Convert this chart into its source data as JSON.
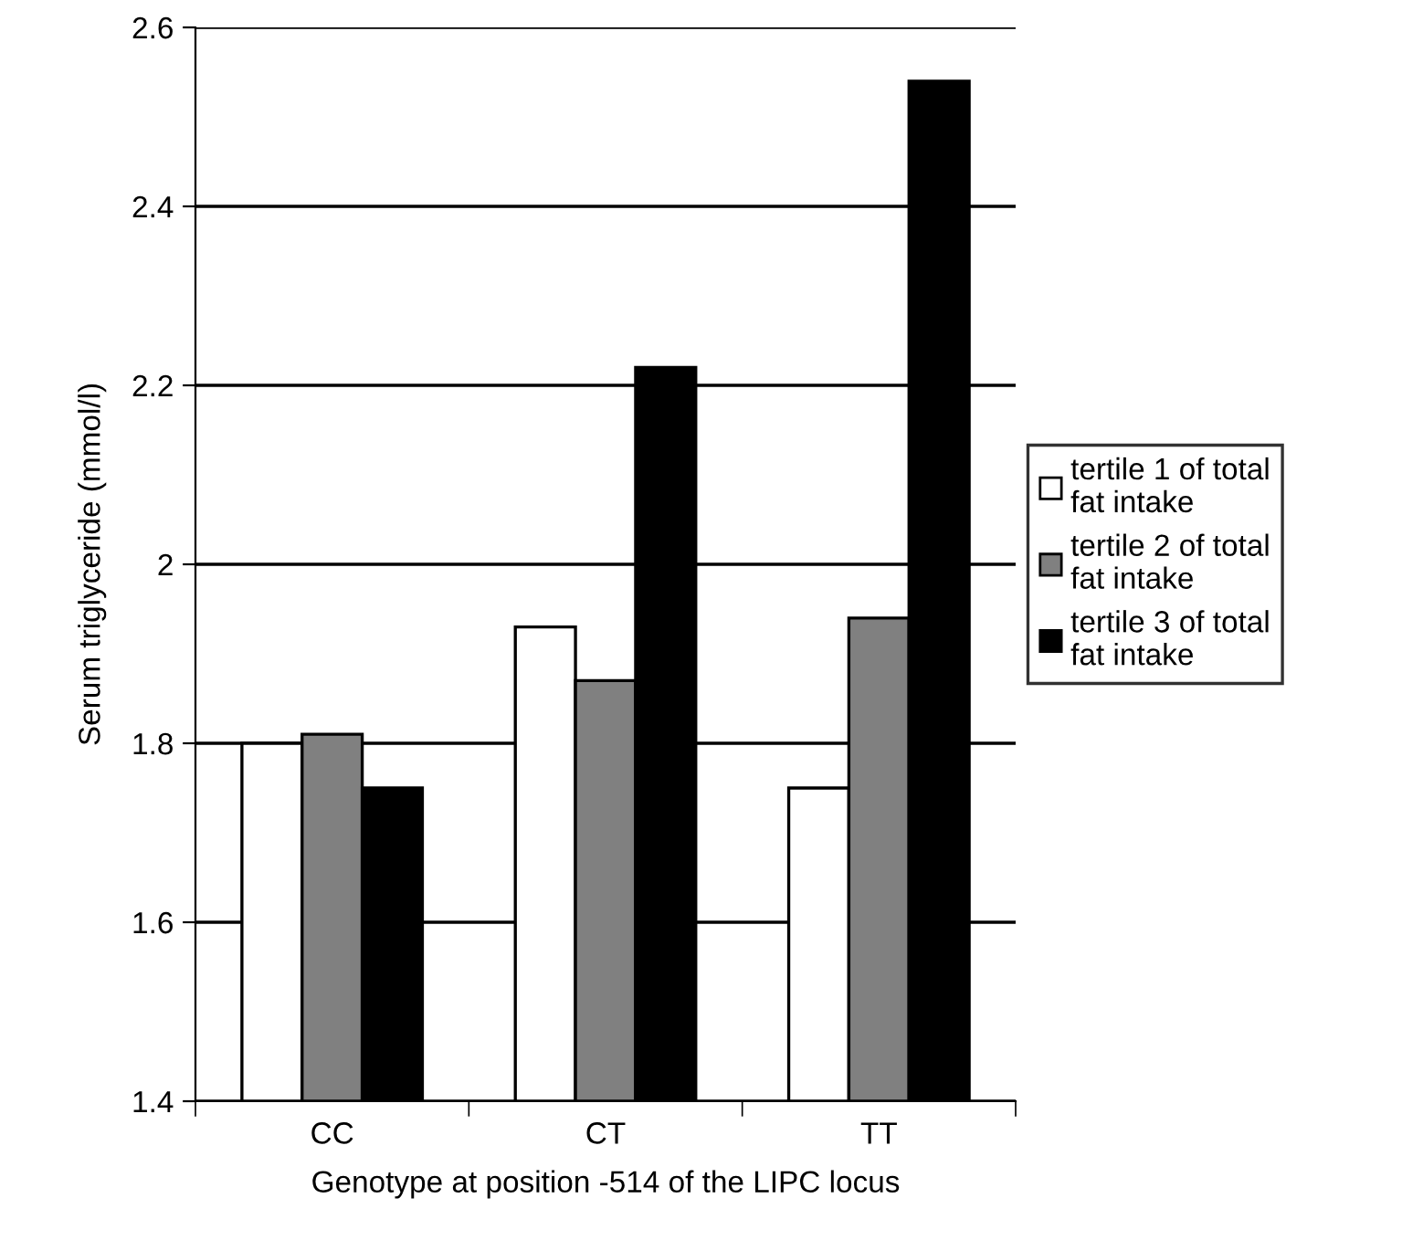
{
  "chart_data": {
    "type": "bar",
    "xlabel": "Genotype at position -514 of the LIPC locus",
    "ylabel": "Serum triglyceride (mmol/l)",
    "categories": [
      "CC",
      "CT",
      "TT"
    ],
    "series": [
      {
        "name": "tertile 1 of total\nfat intake",
        "color": "#ffffff",
        "values": [
          1.8,
          1.93,
          1.75
        ]
      },
      {
        "name": "tertile 2 of total\nfat intake",
        "color": "#808080",
        "values": [
          1.81,
          1.87,
          1.94
        ]
      },
      {
        "name": "tertile 3 of total\nfat intake",
        "color": "#000000",
        "values": [
          1.75,
          2.22,
          2.54
        ]
      }
    ],
    "ylim": [
      1.4,
      2.6
    ],
    "yticks": [
      1.4,
      1.6,
      1.8,
      2,
      2.2,
      2.4,
      2.6
    ],
    "grid": "y",
    "legend": "right"
  }
}
